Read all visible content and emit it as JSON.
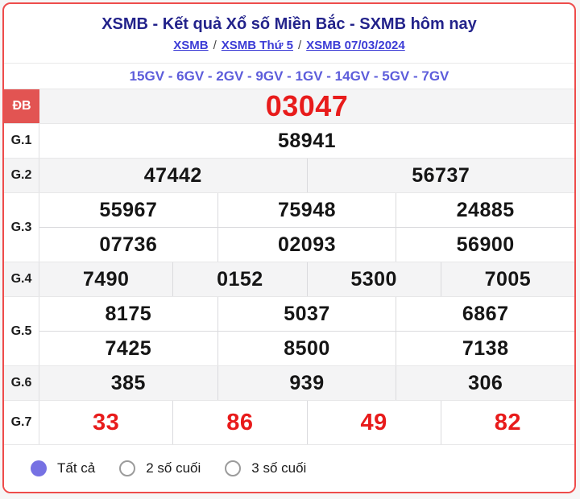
{
  "header": {
    "title": "XSMB - Kết quả Xổ số Miền Bắc - SXMB hôm nay",
    "breadcrumb_separator": "/",
    "breadcrumbs": [
      {
        "label": "XSMB"
      },
      {
        "label": "XSMB Thứ 5"
      },
      {
        "label": "XSMB 07/03/2024"
      }
    ],
    "subtitle": "15GV - 6GV - 2GV - 9GV - 1GV - 14GV - 5GV - 7GV"
  },
  "results": {
    "rows": [
      {
        "id": "db",
        "label": "ĐB",
        "lines": [
          [
            "03047"
          ]
        ]
      },
      {
        "id": "g1",
        "label": "G.1",
        "lines": [
          [
            "58941"
          ]
        ]
      },
      {
        "id": "g2",
        "label": "G.2",
        "lines": [
          [
            "47442",
            "56737"
          ]
        ]
      },
      {
        "id": "g3",
        "label": "G.3",
        "lines": [
          [
            "55967",
            "75948",
            "24885"
          ],
          [
            "07736",
            "02093",
            "56900"
          ]
        ]
      },
      {
        "id": "g4",
        "label": "G.4",
        "lines": [
          [
            "7490",
            "0152",
            "5300",
            "7005"
          ]
        ]
      },
      {
        "id": "g5",
        "label": "G.5",
        "lines": [
          [
            "8175",
            "5037",
            "6867"
          ],
          [
            "7425",
            "8500",
            "7138"
          ]
        ]
      },
      {
        "id": "g6",
        "label": "G.6",
        "lines": [
          [
            "385",
            "939",
            "306"
          ]
        ]
      },
      {
        "id": "g7",
        "label": "G.7",
        "lines": [
          [
            "33",
            "86",
            "49",
            "82"
          ]
        ]
      }
    ]
  },
  "filters": {
    "options": [
      {
        "id": "all",
        "label": "Tất cả",
        "selected": true
      },
      {
        "id": "last-2",
        "label": "2 số cuối",
        "selected": false
      },
      {
        "id": "last-3",
        "label": "3 số cuối",
        "selected": false
      }
    ]
  },
  "colors": {
    "card_border_red": "#ee4c4b",
    "special_prize_cell_red": "#e25452",
    "number_red": "#e81b1b",
    "title_navy": "#23238b",
    "link_blue": "#3c3cd6",
    "subtitle_violet": "#5d5ddb",
    "radio_fill": "#7671e3",
    "row_shade_gray": "#f4f4f5"
  }
}
